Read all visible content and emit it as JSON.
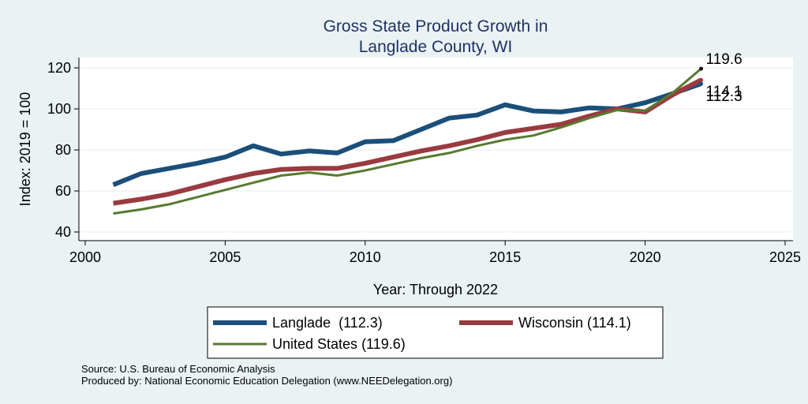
{
  "chart_data": {
    "type": "line",
    "title_lines": [
      "Gross State Product Growth in",
      "Langlade County, WI"
    ],
    "xlabel": "Year: Through 2022",
    "ylabel": "Index: 2019 = 100",
    "xlim": [
      2000,
      2025
    ],
    "ylim": [
      40,
      120
    ],
    "xticks": [
      "2000",
      "2005",
      "2010",
      "2015",
      "2020",
      "2025"
    ],
    "yticks": [
      "40",
      "60",
      "80",
      "100",
      "120"
    ],
    "x": [
      2001,
      2002,
      2003,
      2004,
      2005,
      2006,
      2007,
      2008,
      2009,
      2010,
      2011,
      2012,
      2013,
      2014,
      2015,
      2016,
      2017,
      2018,
      2019,
      2020,
      2021,
      2022
    ],
    "series": [
      {
        "key": "langlade",
        "name": "Langlade  (112.3)",
        "color": "#1b4f7a",
        "width": "thick",
        "end_label": "112.3",
        "values": [
          63,
          68.5,
          71,
          73.5,
          76.5,
          82,
          78,
          79.5,
          78.5,
          84,
          84.5,
          90,
          95.5,
          97,
          102,
          99,
          98.5,
          100.5,
          100,
          103,
          107.5,
          112.3
        ]
      },
      {
        "key": "wisconsin",
        "name": "Wisconsin (114.1)",
        "color": "#9a3a3f",
        "width": "thick",
        "end_label": "114.1",
        "values": [
          54,
          56,
          58.5,
          62,
          65.5,
          68.5,
          70.5,
          71,
          71,
          73.5,
          76.5,
          79.5,
          82,
          85,
          88.5,
          90.5,
          92.5,
          96.5,
          100,
          98.5,
          107,
          114.1
        ]
      },
      {
        "key": "us",
        "name": "United States (119.6)",
        "color": "#577a2f",
        "width": "thin",
        "end_label": "119.6",
        "values": [
          49,
          51,
          53.5,
          57,
          60.5,
          64,
          67.5,
          69,
          67.5,
          70,
          73,
          76,
          78.5,
          82,
          85,
          87,
          91,
          95.5,
          99.5,
          99,
          108,
          119.6
        ]
      }
    ],
    "legend_position": "bottom",
    "grid": true,
    "source_line": "Source: U.S. Bureau of Economic Analysis",
    "produced_line": "Produced by: National Economic Education Delegation (www.NEEDelegation.org)"
  }
}
